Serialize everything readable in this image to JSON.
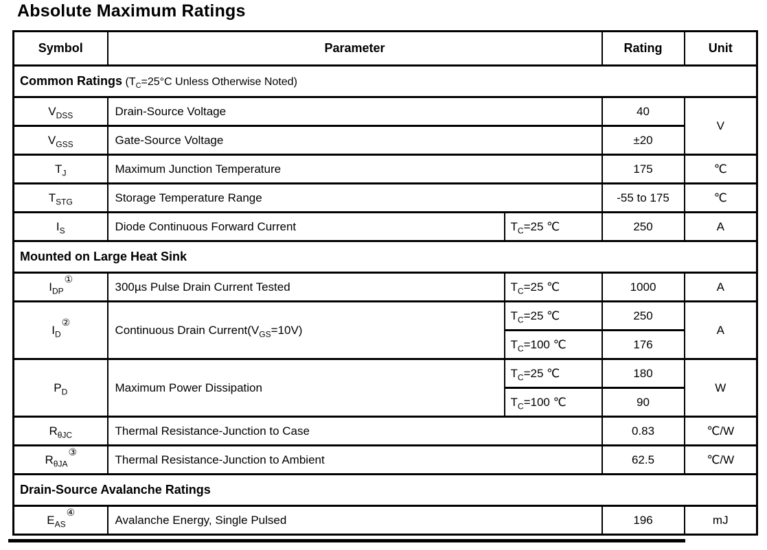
{
  "page": {
    "title": "Absolute Maximum Ratings"
  },
  "table": {
    "headers": {
      "symbol": "Symbol",
      "parameter": "Parameter",
      "rating": "Rating",
      "unit": "Unit"
    },
    "sections": {
      "common": {
        "label": "Common Ratings",
        "note_pre": " (T",
        "note_sub": "C",
        "note_post": "=25°C Unless Otherwise Noted)"
      },
      "heatsink": {
        "label": "Mounted on Large Heat Sink"
      },
      "avalanche": {
        "label": "Drain-Source Avalanche Ratings"
      }
    },
    "rows": {
      "vdss": {
        "sym_base": "V",
        "sym_sub": "DSS",
        "param": "Drain-Source Voltage",
        "rating": "40",
        "unit": "V"
      },
      "vgss": {
        "sym_base": "V",
        "sym_sub": "GSS",
        "param": "Gate-Source Voltage",
        "rating": "±20"
      },
      "tj": {
        "sym_base": "T",
        "sym_sub": "J",
        "param": "Maximum Junction Temperature",
        "rating": "175",
        "unit": "℃"
      },
      "tstg": {
        "sym_base": "T",
        "sym_sub": "STG",
        "param": "Storage Temperature Range",
        "rating": "-55 to 175",
        "unit": "℃"
      },
      "is": {
        "sym_base": "I",
        "sym_sub": "S",
        "param": "Diode Continuous Forward Current",
        "cond_pre": "T",
        "cond_sub": "C",
        "cond_post": "=25 ℃",
        "rating": "250",
        "unit": "A"
      },
      "idp": {
        "sym_base": "I",
        "sym_sub": "DP",
        "sym_sup": "①",
        "param": "300µs Pulse Drain Current Tested",
        "cond_pre": "T",
        "cond_sub": "C",
        "cond_post": "=25 ℃",
        "rating": "1000",
        "unit": "A"
      },
      "id": {
        "sym_base": "I",
        "sym_sub": "D",
        "sym_sup": "②",
        "param_pre": "Continuous Drain Current(V",
        "param_sub": "GS",
        "param_post": "=10V)",
        "cond1_pre": "T",
        "cond1_sub": "C",
        "cond1_post": "=25 ℃",
        "rating1": "250",
        "cond2_pre": "T",
        "cond2_sub": "C",
        "cond2_post": "=100 ℃",
        "rating2": "176",
        "unit": "A"
      },
      "pd": {
        "sym_base": "P",
        "sym_sub": "D",
        "param": "Maximum Power Dissipation",
        "cond1_pre": "T",
        "cond1_sub": "C",
        "cond1_post": "=25 ℃",
        "rating1": "180",
        "cond2_pre": "T",
        "cond2_sub": "C",
        "cond2_post": "=100 ℃",
        "rating2": "90",
        "unit": "W"
      },
      "rthjc": {
        "sym_base": "R",
        "sym_sub": "θJC",
        "param": "Thermal Resistance-Junction to Case",
        "rating": "0.83",
        "unit": "℃/W"
      },
      "rthja": {
        "sym_base": "R",
        "sym_sub": "θJA",
        "sym_sup": "③",
        "param": "Thermal Resistance-Junction to Ambient",
        "rating": "62.5",
        "unit": "℃/W"
      },
      "eas": {
        "sym_base": "E",
        "sym_sub": "AS",
        "sym_sup": "④",
        "param": "Avalanche Energy, Single Pulsed",
        "rating": "196",
        "unit": "mJ"
      }
    }
  }
}
